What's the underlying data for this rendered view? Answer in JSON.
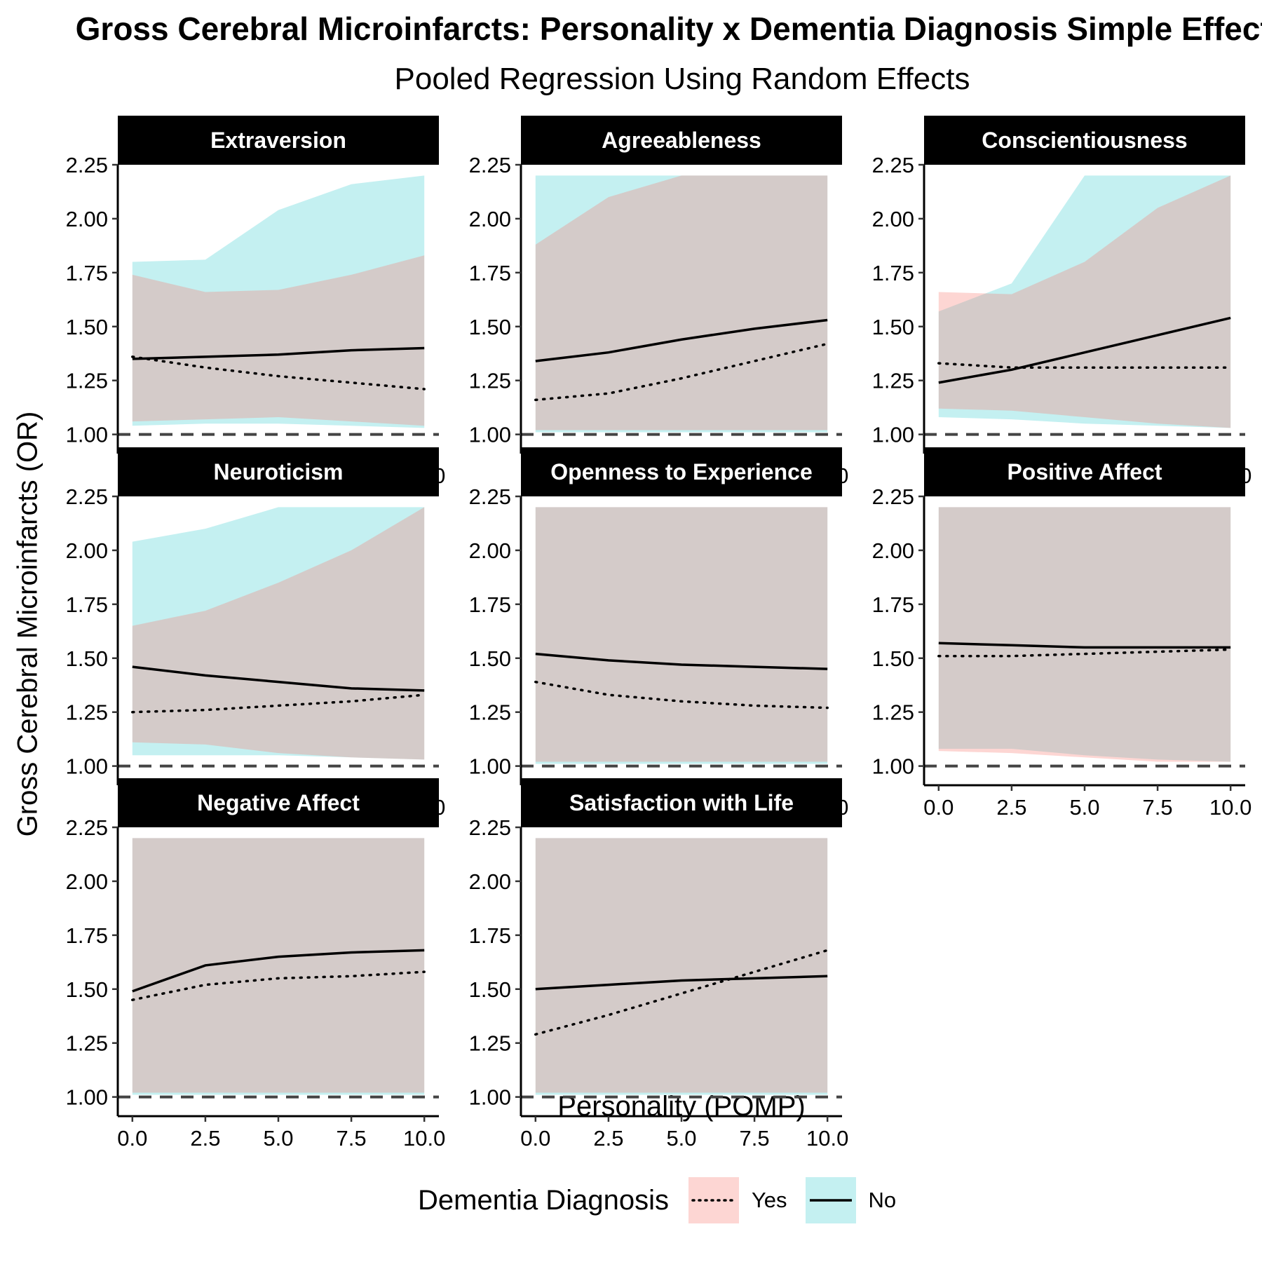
{
  "chart_data": {
    "type": "area",
    "title": "Gross Cerebral Microinfarcts: Personality x Dementia Diagnosis Simple Effects",
    "subtitle": "Pooled Regression Using Random Effects",
    "xlabel": "Personality (POMP)",
    "ylabel": "Gross Cerebral Microinfarcts (OR)",
    "xlim": [
      0,
      10
    ],
    "ylim": [
      0.95,
      2.25
    ],
    "x_ticks": [
      "0.0",
      "2.5",
      "5.0",
      "7.5",
      "10.0"
    ],
    "y_ticks": [
      "1.00",
      "1.25",
      "1.50",
      "1.75",
      "2.00",
      "2.25"
    ],
    "reference_line": 1.0,
    "band_cap": 2.2,
    "legend": {
      "title": "Dementia Diagnosis",
      "items": [
        {
          "label": "Yes",
          "line": "dotted",
          "fill": "#f8766d"
        },
        {
          "label": "No",
          "line": "solid",
          "fill": "#00bfc4"
        }
      ]
    },
    "colors": {
      "yes_band": "#f8766d",
      "no_band": "#00bfc4",
      "overlap": "#c1cfcf",
      "strip_bg": "#000000",
      "strip_text": "#ffffff",
      "ref_line": "#444444"
    },
    "x": [
      0,
      2.5,
      5,
      7.5,
      10
    ],
    "panels": [
      {
        "facet": "Extraversion",
        "yes": {
          "fit": [
            1.36,
            1.31,
            1.27,
            1.24,
            1.21
          ],
          "lower": [
            1.06,
            1.07,
            1.08,
            1.06,
            1.04
          ],
          "upper": [
            1.74,
            1.66,
            1.67,
            1.74,
            1.83
          ]
        },
        "no": {
          "fit": [
            1.35,
            1.36,
            1.37,
            1.39,
            1.4
          ],
          "lower": [
            1.04,
            1.05,
            1.05,
            1.04,
            1.03
          ],
          "upper": [
            1.8,
            1.81,
            2.04,
            2.16,
            2.25
          ]
        }
      },
      {
        "facet": "Agreeableness",
        "yes": {
          "fit": [
            1.16,
            1.19,
            1.26,
            1.34,
            1.42
          ],
          "lower": [
            1.02,
            1.02,
            1.02,
            1.02,
            1.02
          ],
          "upper": [
            1.88,
            2.1,
            2.3,
            2.4,
            2.5
          ]
        },
        "no": {
          "fit": [
            1.34,
            1.38,
            1.44,
            1.49,
            1.53
          ],
          "lower": [
            1.01,
            1.01,
            1.01,
            1.01,
            1.01
          ],
          "upper": [
            2.25,
            2.25,
            2.4,
            2.5,
            2.6
          ]
        }
      },
      {
        "facet": "Conscientiousness",
        "yes": {
          "fit": [
            1.33,
            1.31,
            1.31,
            1.31,
            1.31
          ],
          "lower": [
            1.12,
            1.11,
            1.08,
            1.05,
            1.03
          ],
          "upper": [
            1.66,
            1.65,
            1.8,
            2.05,
            2.25
          ]
        },
        "no": {
          "fit": [
            1.24,
            1.3,
            1.38,
            1.46,
            1.54
          ],
          "lower": [
            1.08,
            1.07,
            1.05,
            1.04,
            1.03
          ],
          "upper": [
            1.57,
            1.7,
            2.2,
            2.4,
            2.6
          ]
        }
      },
      {
        "facet": "Neuroticism",
        "yes": {
          "fit": [
            1.25,
            1.26,
            1.28,
            1.3,
            1.33
          ],
          "lower": [
            1.11,
            1.1,
            1.06,
            1.04,
            1.03
          ],
          "upper": [
            1.65,
            1.72,
            1.85,
            2.0,
            2.2
          ]
        },
        "no": {
          "fit": [
            1.46,
            1.42,
            1.39,
            1.36,
            1.35
          ],
          "lower": [
            1.05,
            1.05,
            1.05,
            1.04,
            1.03
          ],
          "upper": [
            2.04,
            2.1,
            2.3,
            2.4,
            2.5
          ]
        }
      },
      {
        "facet": "Openness to Experience",
        "yes": {
          "fit": [
            1.39,
            1.33,
            1.3,
            1.28,
            1.27
          ],
          "lower": [
            1.02,
            1.02,
            1.02,
            1.02,
            1.02
          ],
          "upper": [
            2.3,
            2.4,
            2.4,
            2.4,
            2.4
          ]
        },
        "no": {
          "fit": [
            1.52,
            1.49,
            1.47,
            1.46,
            1.45
          ],
          "lower": [
            1.01,
            1.01,
            1.01,
            1.01,
            1.01
          ],
          "upper": [
            2.4,
            2.4,
            2.4,
            2.4,
            2.4
          ]
        }
      },
      {
        "facet": "Positive Affect",
        "yes": {
          "fit": [
            1.51,
            1.51,
            1.52,
            1.53,
            1.54
          ],
          "lower": [
            1.07,
            1.06,
            1.04,
            1.02,
            1.02
          ],
          "upper": [
            2.4,
            2.4,
            2.4,
            2.4,
            2.4
          ]
        },
        "no": {
          "fit": [
            1.57,
            1.56,
            1.55,
            1.55,
            1.55
          ],
          "lower": [
            1.08,
            1.08,
            1.05,
            1.03,
            1.02
          ],
          "upper": [
            2.4,
            2.4,
            2.4,
            2.4,
            2.4
          ]
        }
      },
      {
        "facet": "Negative Affect",
        "yes": {
          "fit": [
            1.45,
            1.52,
            1.55,
            1.56,
            1.58
          ],
          "lower": [
            1.02,
            1.02,
            1.02,
            1.02,
            1.02
          ],
          "upper": [
            2.4,
            2.4,
            2.4,
            2.4,
            2.4
          ]
        },
        "no": {
          "fit": [
            1.49,
            1.61,
            1.65,
            1.67,
            1.68
          ],
          "lower": [
            1.01,
            1.01,
            1.01,
            1.01,
            1.01
          ],
          "upper": [
            2.4,
            2.4,
            2.4,
            2.4,
            2.4
          ]
        }
      },
      {
        "facet": "Satisfaction with Life",
        "yes": {
          "fit": [
            1.29,
            1.38,
            1.48,
            1.58,
            1.68
          ],
          "lower": [
            1.02,
            1.02,
            1.02,
            1.02,
            1.02
          ],
          "upper": [
            2.4,
            2.4,
            2.4,
            2.4,
            2.4
          ]
        },
        "no": {
          "fit": [
            1.5,
            1.52,
            1.54,
            1.55,
            1.56
          ],
          "lower": [
            1.01,
            1.01,
            1.01,
            1.01,
            1.01
          ],
          "upper": [
            2.4,
            2.4,
            2.4,
            2.4,
            2.4
          ]
        }
      }
    ]
  }
}
